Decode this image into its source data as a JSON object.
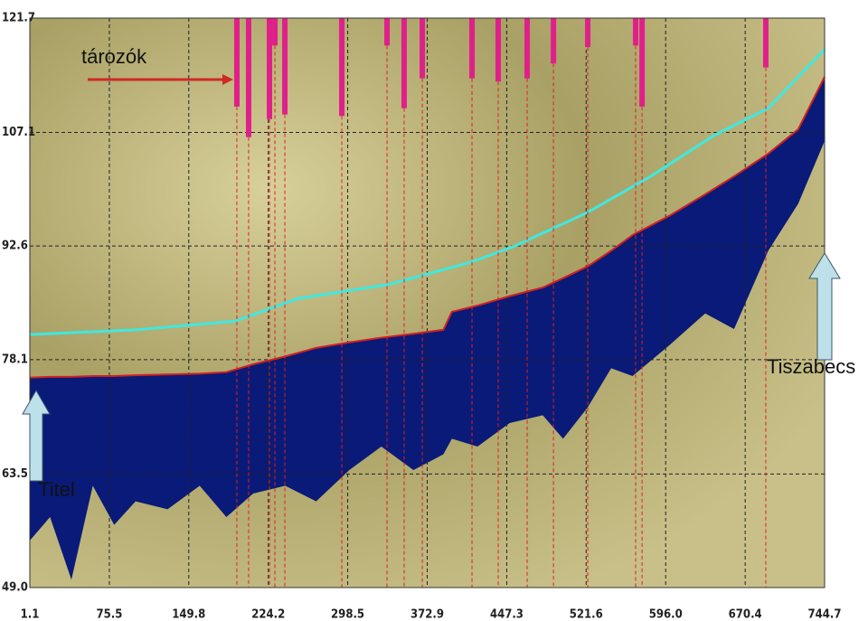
{
  "chart_data": {
    "type": "line",
    "xlim": [
      1.1,
      744.7
    ],
    "ylim": [
      49,
      121.7
    ],
    "xticks": [
      1.1,
      75.5,
      149.8,
      224.2,
      298.5,
      372.9,
      447.3,
      521.6,
      {
        "value": 596,
        "label": "596.0"
      },
      670.4,
      744.7
    ],
    "yticks": [
      {
        "value": 49,
        "label": "49.0"
      },
      63.5,
      78.1,
      92.6,
      107.1,
      121.7
    ],
    "grid": true,
    "series": [
      {
        "type": "line",
        "color": "#40e8e0",
        "x": [
          1.1,
          100,
          193,
          252,
          337,
          413,
          455,
          523,
          582,
          641,
          692,
          744.7
        ],
        "values": [
          81.3,
          81.9,
          83.0,
          85.9,
          87.7,
          90.5,
          92.6,
          96.9,
          101.5,
          106.7,
          110.2,
          117.7
        ]
      },
      {
        "type": "line",
        "color": "#d02020",
        "x": [
          1.1,
          20,
          40,
          60,
          80,
          100,
          130,
          160,
          185,
          210,
          240,
          269,
          300,
          330,
          360,
          388,
          396,
          420,
          450,
          481,
          500,
          523,
          545,
          565,
          600,
          633,
          660,
          692,
          720,
          744.7
        ],
        "values": [
          75.8,
          75.9,
          75.9,
          76.0,
          76.0,
          76.1,
          76.2,
          76.3,
          76.5,
          77.5,
          78.5,
          79.6,
          80.3,
          80.9,
          81.4,
          81.9,
          84.2,
          85.0,
          86.2,
          87.3,
          88.5,
          90.0,
          92.0,
          94.0,
          96.5,
          99.2,
          101.5,
          104.4,
          107.5,
          114.2
        ]
      },
      {
        "type": "area",
        "color": "#0a1a78",
        "x": [
          1.1,
          20,
          40,
          60,
          80,
          100,
          130,
          160,
          185,
          210,
          240,
          269,
          300,
          330,
          360,
          388,
          396,
          420,
          450,
          481,
          500,
          523,
          545,
          565,
          600,
          633,
          660,
          692,
          720,
          744.7
        ],
        "values": [
          55,
          58,
          50,
          62,
          57,
          60,
          59,
          62,
          58,
          61,
          62,
          60,
          64,
          67,
          64,
          66,
          68,
          67,
          70,
          71,
          68,
          72,
          77,
          76,
          80,
          84,
          82,
          92,
          98,
          106
        ]
      },
      {
        "type": "bar",
        "color": "#e0208a",
        "x": [
          194.8,
          205.8,
          225.3,
          230.4,
          239.7,
          293.0,
          335.3,
          351.3,
          368.3,
          414.8,
          439.3,
          466.4,
          491.0,
          523.1,
          567.9,
          573.9,
          689.7
        ],
        "values": [
          110.4,
          106.5,
          108.8,
          118.2,
          109.4,
          109.2,
          118.2,
          110.2,
          114.0,
          114.0,
          113.6,
          114.0,
          115.9,
          118.0,
          118.2,
          110.4,
          115.4
        ]
      }
    ],
    "annotations": [
      "tározók",
      "Titel",
      "Tiszabecs"
    ]
  }
}
